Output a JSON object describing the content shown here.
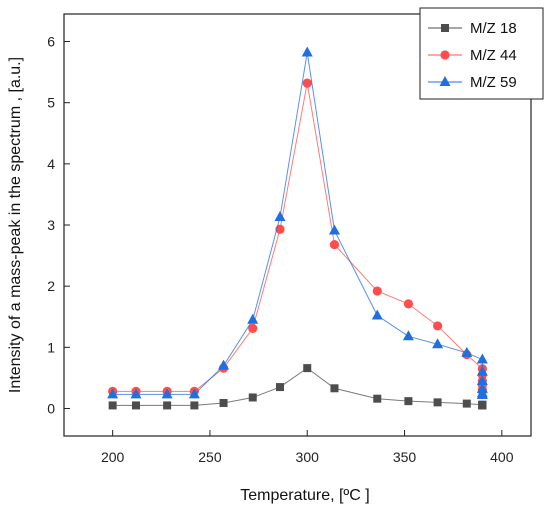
{
  "chart_data": {
    "type": "line",
    "title": "",
    "xlabel": "Temperature, [ºC ]",
    "ylabel": "Intensity of a mass-peak in the spectrum , [a.u.]",
    "xlim": [
      175,
      415
    ],
    "ylim": [
      -0.45,
      6.45
    ],
    "xticks": [
      200,
      250,
      300,
      350,
      400
    ],
    "yticks": [
      0,
      1,
      2,
      3,
      4,
      5,
      6
    ],
    "legend_position": "top-right",
    "grid": false,
    "series": [
      {
        "name": "M/Z 18",
        "color": "#4d4d4d",
        "marker": "square",
        "x": [
          200,
          212,
          228,
          242,
          257,
          272,
          286,
          300,
          314,
          336,
          352,
          367,
          382,
          390,
          390,
          390,
          390,
          390,
          390
        ],
        "y": [
          0.05,
          0.05,
          0.05,
          0.05,
          0.09,
          0.18,
          0.35,
          0.66,
          0.33,
          0.16,
          0.12,
          0.1,
          0.08,
          0.06,
          0.05,
          0.06,
          0.05,
          0.06,
          0.05
        ]
      },
      {
        "name": "M/Z 44",
        "color": "#ff4d4d",
        "marker": "circle",
        "x": [
          200,
          212,
          228,
          242,
          257,
          272,
          286,
          300,
          314,
          336,
          352,
          367,
          382,
          390,
          390,
          390,
          390,
          390,
          390
        ],
        "y": [
          0.28,
          0.28,
          0.28,
          0.28,
          0.66,
          1.31,
          2.93,
          5.32,
          2.68,
          1.92,
          1.71,
          1.35,
          0.88,
          0.65,
          0.55,
          0.45,
          0.38,
          0.3,
          0.28
        ]
      },
      {
        "name": "M/Z 59",
        "color": "#1f6fe0",
        "marker": "triangle",
        "x": [
          200,
          212,
          228,
          242,
          257,
          272,
          286,
          300,
          314,
          336,
          352,
          367,
          382,
          390,
          390,
          390,
          390,
          390,
          390
        ],
        "y": [
          0.23,
          0.23,
          0.23,
          0.23,
          0.7,
          1.45,
          3.13,
          5.82,
          2.91,
          1.52,
          1.18,
          1.05,
          0.91,
          0.8,
          0.6,
          0.45,
          0.32,
          0.25,
          0.22
        ]
      }
    ]
  }
}
